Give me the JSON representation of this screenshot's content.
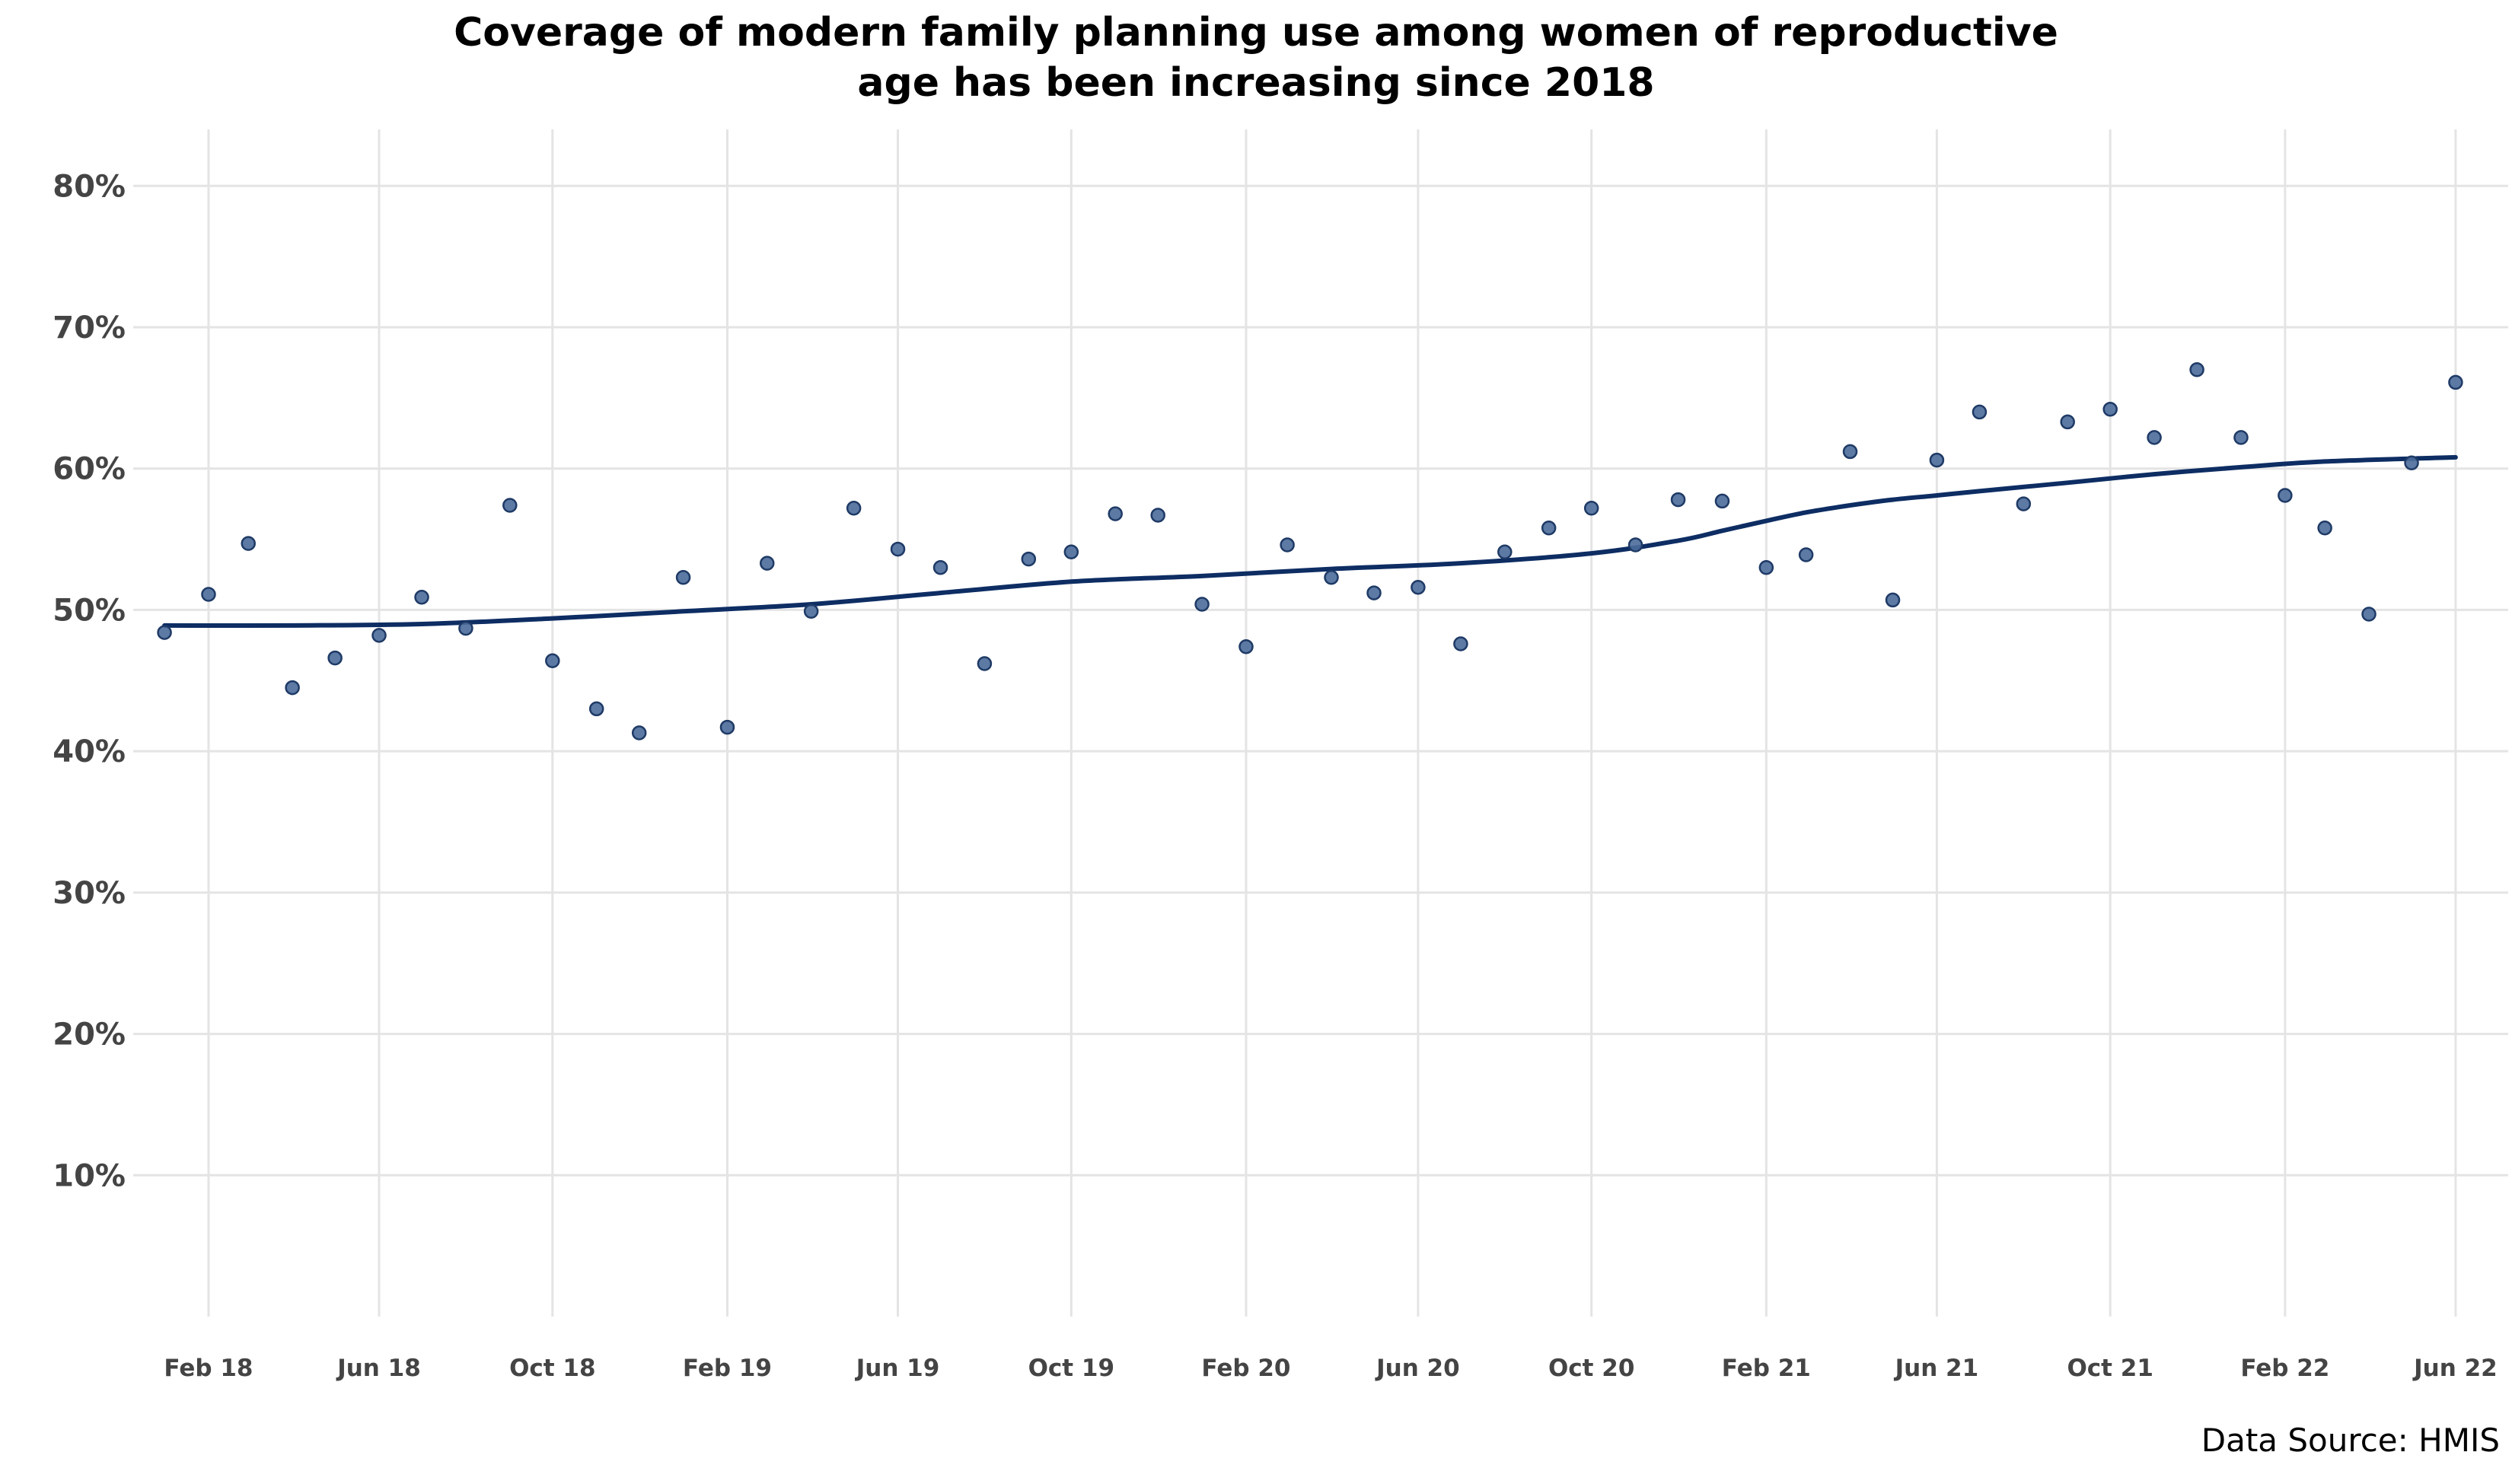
{
  "chart_data": {
    "type": "scatter",
    "title_lines": [
      "Coverage of modern family planning use among women of reproductive",
      "age has been increasing since 2018"
    ],
    "xlabel": "",
    "ylabel": "",
    "source_note": "Data Source: HMIS",
    "ylim": [
      0,
      0.84
    ],
    "xlim": [
      "2017-12-10",
      "2022-07-08"
    ],
    "grid": true,
    "y_ticks": [
      {
        "value": 0.1,
        "label": "10%"
      },
      {
        "value": 0.2,
        "label": "20%"
      },
      {
        "value": 0.3,
        "label": "30%"
      },
      {
        "value": 0.4,
        "label": "40%"
      },
      {
        "value": 0.5,
        "label": "50%"
      },
      {
        "value": 0.6,
        "label": "60%"
      },
      {
        "value": 0.7,
        "label": "70%"
      },
      {
        "value": 0.8,
        "label": "80%"
      }
    ],
    "x_ticks": [
      {
        "value": "2018-02-01",
        "label": "Feb 18"
      },
      {
        "value": "2018-06-01",
        "label": "Jun 18"
      },
      {
        "value": "2018-10-01",
        "label": "Oct 18"
      },
      {
        "value": "2019-02-01",
        "label": "Feb 19"
      },
      {
        "value": "2019-06-01",
        "label": "Jun 19"
      },
      {
        "value": "2019-10-01",
        "label": "Oct 19"
      },
      {
        "value": "2020-02-01",
        "label": "Feb 20"
      },
      {
        "value": "2020-06-01",
        "label": "Jun 20"
      },
      {
        "value": "2020-10-01",
        "label": "Oct 20"
      },
      {
        "value": "2021-02-01",
        "label": "Feb 21"
      },
      {
        "value": "2021-06-01",
        "label": "Jun 21"
      },
      {
        "value": "2021-10-01",
        "label": "Oct 21"
      },
      {
        "value": "2022-02-01",
        "label": "Feb 22"
      },
      {
        "value": "2022-06-01",
        "label": "Jun 22"
      }
    ],
    "series": [
      {
        "type": "scatter",
        "color": "#4a6b9a",
        "stroke": "#1f3a66",
        "points": [
          [
            "2018-01-01",
            0.484
          ],
          [
            "2018-02-01",
            0.511
          ],
          [
            "2018-03-01",
            0.547
          ],
          [
            "2018-04-01",
            0.445
          ],
          [
            "2018-05-01",
            0.466
          ],
          [
            "2018-06-01",
            0.482
          ],
          [
            "2018-07-01",
            0.509
          ],
          [
            "2018-08-01",
            0.487
          ],
          [
            "2018-09-01",
            0.574
          ],
          [
            "2018-10-01",
            0.464
          ],
          [
            "2018-11-01",
            0.43
          ],
          [
            "2018-12-01",
            0.413
          ],
          [
            "2019-01-01",
            0.523
          ],
          [
            "2019-02-01",
            0.417
          ],
          [
            "2019-03-01",
            0.533
          ],
          [
            "2019-04-01",
            0.499
          ],
          [
            "2019-05-01",
            0.572
          ],
          [
            "2019-06-01",
            0.543
          ],
          [
            "2019-07-01",
            0.53
          ],
          [
            "2019-08-01",
            0.462
          ],
          [
            "2019-09-01",
            0.536
          ],
          [
            "2019-10-01",
            0.541
          ],
          [
            "2019-11-01",
            0.568
          ],
          [
            "2019-12-01",
            0.567
          ],
          [
            "2020-01-01",
            0.504
          ],
          [
            "2020-02-01",
            0.474
          ],
          [
            "2020-03-01",
            0.546
          ],
          [
            "2020-04-01",
            0.523
          ],
          [
            "2020-05-01",
            0.512
          ],
          [
            "2020-06-01",
            0.516
          ],
          [
            "2020-07-01",
            0.476
          ],
          [
            "2020-08-01",
            0.541
          ],
          [
            "2020-09-01",
            0.558
          ],
          [
            "2020-10-01",
            0.572
          ],
          [
            "2020-11-01",
            0.546
          ],
          [
            "2020-12-01",
            0.578
          ],
          [
            "2021-01-01",
            0.577
          ],
          [
            "2021-02-01",
            0.53
          ],
          [
            "2021-03-01",
            0.539
          ],
          [
            "2021-04-01",
            0.612
          ],
          [
            "2021-05-01",
            0.507
          ],
          [
            "2021-06-01",
            0.606
          ],
          [
            "2021-07-01",
            0.64
          ],
          [
            "2021-08-01",
            0.575
          ],
          [
            "2021-09-01",
            0.633
          ],
          [
            "2021-10-01",
            0.642
          ],
          [
            "2021-11-01",
            0.622
          ],
          [
            "2021-12-01",
            0.67
          ],
          [
            "2022-01-01",
            0.622
          ],
          [
            "2022-02-01",
            0.581
          ],
          [
            "2022-03-01",
            0.558
          ],
          [
            "2022-04-01",
            0.497
          ],
          [
            "2022-05-01",
            0.604
          ],
          [
            "2022-06-01",
            0.661
          ]
        ]
      },
      {
        "type": "line",
        "color": "#0d2d63",
        "points": [
          [
            "2018-01-01",
            0.489
          ],
          [
            "2018-04-01",
            0.489
          ],
          [
            "2018-07-01",
            0.49
          ],
          [
            "2018-10-01",
            0.494
          ],
          [
            "2019-01-01",
            0.499
          ],
          [
            "2019-04-01",
            0.504
          ],
          [
            "2019-07-01",
            0.512
          ],
          [
            "2019-10-01",
            0.52
          ],
          [
            "2020-01-01",
            0.524
          ],
          [
            "2020-04-01",
            0.529
          ],
          [
            "2020-07-01",
            0.533
          ],
          [
            "2020-10-01",
            0.54
          ],
          [
            "2020-12-01",
            0.549
          ],
          [
            "2021-01-01",
            0.556
          ],
          [
            "2021-02-01",
            0.563
          ],
          [
            "2021-03-01",
            0.569
          ],
          [
            "2021-04-01",
            0.574
          ],
          [
            "2021-05-01",
            0.578
          ],
          [
            "2021-06-01",
            0.581
          ],
          [
            "2021-07-01",
            0.584
          ],
          [
            "2021-09-01",
            0.59
          ],
          [
            "2021-11-01",
            0.596
          ],
          [
            "2022-01-01",
            0.601
          ],
          [
            "2022-03-01",
            0.605
          ],
          [
            "2022-06-01",
            0.608
          ]
        ]
      }
    ]
  }
}
